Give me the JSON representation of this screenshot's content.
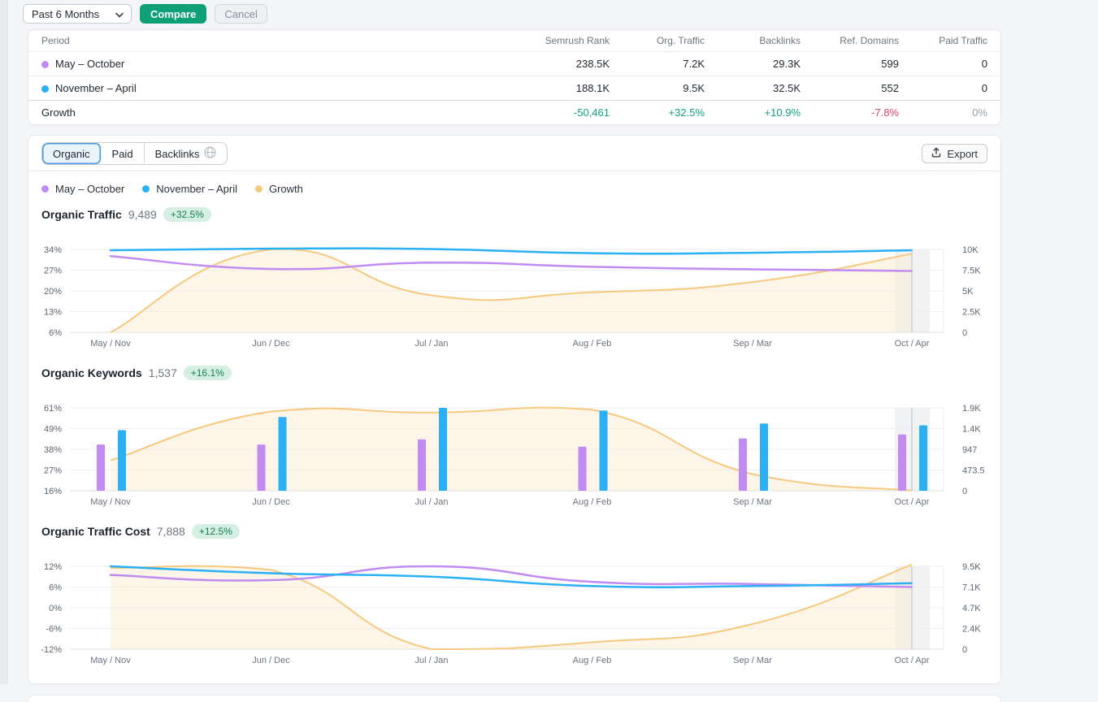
{
  "colors": {
    "period1": "#c18bf2",
    "period2": "#2ab1f5",
    "growth_line": "#f6c97e",
    "growth_area": "#f9edd6",
    "positive": "#0fa37e",
    "negative": "#e0426c",
    "neutral": "#9aa0a8",
    "primary_button": "#10a077",
    "active_tab_border": "#4596db",
    "badge_bg": "#d5efe3",
    "badge_text": "#147a58"
  },
  "icons": {
    "period_select": "chevron-down-icon",
    "backlinks_tab": "globe-icon",
    "export_button": "upload-icon"
  },
  "toolbar": {
    "period_select_value": "Past 6 Months",
    "compare_label": "Compare",
    "cancel_label": "Cancel"
  },
  "table": {
    "columns": [
      "Period",
      "Semrush Rank",
      "Org. Traffic",
      "Backlinks",
      "Ref. Domains",
      "Paid Traffic"
    ],
    "rows": [
      {
        "period": "May – October",
        "dot_color": "#c18bf2",
        "values": [
          "238.5K",
          "7.2K",
          "29.3K",
          "599",
          "0"
        ]
      },
      {
        "period": "November – April",
        "dot_color": "#2ab1f5",
        "values": [
          "188.1K",
          "9.5K",
          "32.5K",
          "552",
          "0"
        ]
      }
    ],
    "growth_row": {
      "label": "Growth",
      "values": [
        {
          "text": "-50,461",
          "color": "#0fa37e"
        },
        {
          "text": "+32.5%",
          "color": "#0fa37e"
        },
        {
          "text": "+10.9%",
          "color": "#0fa37e"
        },
        {
          "text": "-7.8%",
          "color": "#e0426c"
        },
        {
          "text": "0%",
          "color": "#9aa0a8"
        }
      ]
    }
  },
  "panel": {
    "tabs": [
      {
        "label": "Organic",
        "active": true
      },
      {
        "label": "Paid",
        "active": false
      },
      {
        "label": "Backlinks",
        "active": false,
        "icon": "globe-icon"
      }
    ],
    "export_label": "Export",
    "legend": [
      {
        "label": "May – October",
        "color": "#c18bf2"
      },
      {
        "label": "November – April",
        "color": "#2ab1f5"
      },
      {
        "label": "Growth",
        "color": "#f6c97e"
      }
    ]
  },
  "chart_data": [
    {
      "type": "line",
      "title": "Organic Traffic",
      "value": "9,489",
      "badge": "+32.5%",
      "x_labels": [
        "May / Nov",
        "Jun / Dec",
        "Jul / Jan",
        "Aug / Feb",
        "Sep / Mar",
        "Oct / Apr"
      ],
      "left_axis": {
        "ticks": [
          "34%",
          "27%",
          "20%",
          "13%",
          "6%"
        ],
        "max": 34,
        "min": 6
      },
      "right_axis": {
        "ticks": [
          "10K",
          "7.5K",
          "5K",
          "2.5K",
          "0"
        ],
        "max": 10000,
        "min": 0
      },
      "grid": true,
      "legend_position": "top",
      "series": [
        {
          "name": "Growth",
          "kind": "area-line",
          "axis": "left",
          "color": "#f6c97e",
          "values": [
            6,
            34,
            18.5,
            19.5,
            23,
            32.5
          ]
        },
        {
          "name": "May – October",
          "kind": "line",
          "axis": "right",
          "color": "#c18bf2",
          "values": [
            9200,
            7650,
            8400,
            7900,
            7600,
            7400
          ]
        },
        {
          "name": "November – April",
          "kind": "line",
          "axis": "right",
          "color": "#2ab1f5",
          "values": [
            9900,
            10100,
            10050,
            9550,
            9600,
            9900
          ]
        }
      ]
    },
    {
      "type": "bar",
      "title": "Organic Keywords",
      "value": "1,537",
      "badge": "+16.1%",
      "x_labels": [
        "May / Nov",
        "Jun / Dec",
        "Jul / Jan",
        "Aug / Feb",
        "Sep / Mar",
        "Oct / Apr"
      ],
      "left_axis": {
        "ticks": [
          "61%",
          "49%",
          "38%",
          "27%",
          "16%"
        ],
        "max": 61,
        "min": 16
      },
      "right_axis": {
        "ticks": [
          "1.9K",
          "1.4K",
          "947",
          "473.5",
          "0"
        ],
        "max": 1900,
        "min": 0
      },
      "grid": true,
      "legend_position": "top",
      "series": [
        {
          "name": "Growth",
          "kind": "area-line",
          "axis": "left",
          "color": "#f6c97e",
          "values": [
            32.5,
            59,
            58.5,
            60,
            25,
            16.1
          ]
        },
        {
          "name": "May – October",
          "kind": "bar",
          "axis": "right",
          "color": "#c18bf2",
          "values": [
            1060,
            1060,
            1180,
            1010,
            1200,
            1290
          ]
        },
        {
          "name": "November – April",
          "kind": "bar",
          "axis": "right",
          "color": "#2ab1f5",
          "values": [
            1390,
            1690,
            1900,
            1840,
            1540,
            1500
          ]
        }
      ]
    },
    {
      "type": "line",
      "title": "Organic Traffic Cost",
      "value": "7,888",
      "badge": "+12.5%",
      "x_labels": [
        "May / Nov",
        "Jun / Dec",
        "Jul / Jan",
        "Aug / Feb",
        "Sep / Mar",
        "Oct / Apr"
      ],
      "left_axis": {
        "ticks": [
          "12%",
          "6%",
          "0%",
          "-6%",
          "-12%"
        ],
        "max": 12,
        "min": -12
      },
      "right_axis": {
        "ticks": [
          "9.5K",
          "7.1K",
          "4.7K",
          "2.4K",
          "0"
        ],
        "max": 9500,
        "min": 0
      },
      "grid": true,
      "legend_position": "top",
      "series": [
        {
          "name": "Growth",
          "kind": "area-line",
          "axis": "left",
          "color": "#f6c97e",
          "values": [
            11.5,
            11,
            -12,
            -10,
            -4.7,
            12.5
          ]
        },
        {
          "name": "May – October",
          "kind": "line",
          "axis": "right",
          "color": "#c18bf2",
          "values": [
            8510,
            7920,
            9500,
            7720,
            7480,
            7125
          ]
        },
        {
          "name": "November – April",
          "kind": "line",
          "axis": "right",
          "color": "#2ab1f5",
          "values": [
            9500,
            8710,
            8310,
            7240,
            7240,
            7560
          ]
        }
      ]
    }
  ]
}
